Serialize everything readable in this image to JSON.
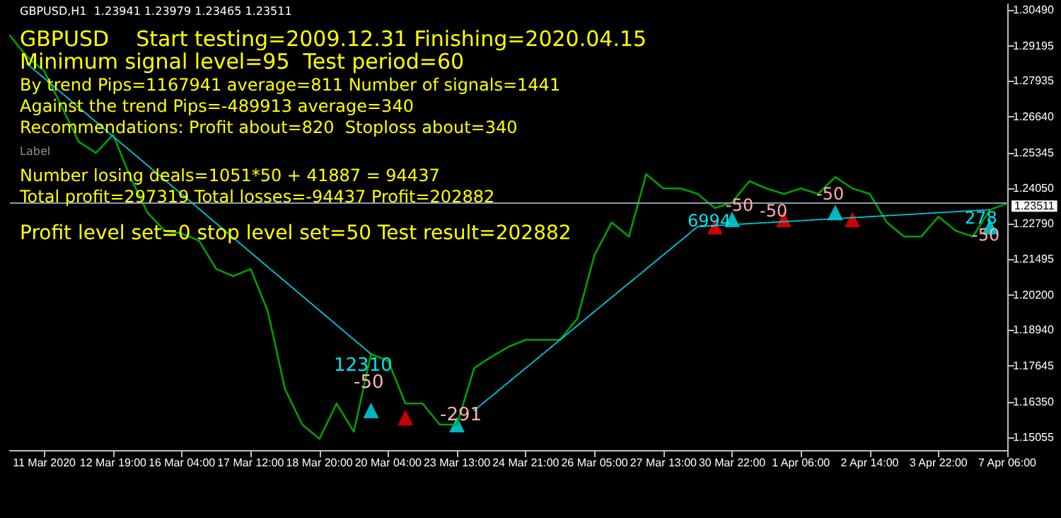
{
  "chart_data": {
    "type": "line",
    "title": "GBPUSD,H1  1.23941 1.23979 1.23465 1.23511",
    "annotations": [
      "GBPUSD    Start testing=2009.12.31 Finishing=2020.04.15",
      "Minimum signal level=95  Test period=60",
      "By trend Pips=1167941 average=811 Number of signals=1441",
      "Against the trend Pips=-489913 average=340",
      "Recommendations: Profit about=820  Stoploss about=340",
      "Label",
      "Number losing deals=1051*50 + 41887 = 94437",
      "Total profit=297319 Total losses=-94437 Profit=202882",
      "Profit level set=0 stop level set=50 Test result=202882",
      "12310",
      "-50",
      "-291",
      "6994",
      "-50",
      "-50",
      "-50",
      "278",
      "-50"
    ],
    "categories": [
      null,
      null,
      "11 Mar 2020",
      null,
      null,
      null,
      "12 Mar 19:00",
      null,
      null,
      null,
      "16 Mar 04:00",
      null,
      null,
      null,
      "17 Mar 12:00",
      null,
      null,
      null,
      "18 Mar 20:00",
      null,
      null,
      null,
      "20 Mar 04:00",
      null,
      null,
      null,
      "23 Mar 13:00",
      null,
      null,
      null,
      "24 Mar 21:00",
      null,
      null,
      null,
      "26 Mar 05:00",
      null,
      null,
      null,
      "27 Mar 13:00",
      null,
      null,
      null,
      "30 Mar 22:00",
      null,
      null,
      null,
      "1 Apr 06:00",
      null,
      null,
      null,
      "2 Apr 14:00",
      null,
      null,
      null,
      "3 Apr 22:00",
      null,
      null,
      null,
      "7 Apr 06:00"
    ],
    "series": [
      {
        "type": "line",
        "color": "#00a000",
        "values": [
          1.2957,
          1.288,
          1.2829,
          1.2702,
          1.2574,
          1.2533,
          1.2599,
          1.2446,
          1.2318,
          1.2252,
          1.2242,
          1.2216,
          1.2114,
          1.2088,
          1.2114,
          1.1961,
          1.168,
          1.1552,
          1.1501,
          1.1628,
          1.1526,
          1.1807,
          1.1782,
          1.1628,
          1.1628,
          1.1552,
          1.1552,
          1.1756,
          1.1797,
          1.1833,
          1.1858,
          1.1858,
          1.1858,
          1.1935,
          1.2165,
          1.2282,
          1.2231,
          1.2456,
          1.2405,
          1.2405,
          1.2385,
          1.2334,
          1.2354,
          1.2431,
          1.2405,
          1.2385,
          1.2405,
          1.2385,
          1.2446,
          1.2405,
          1.2385,
          1.2282,
          1.2231,
          1.2231,
          1.2303,
          1.2252,
          1.2231,
          1.2328,
          1.2351
        ]
      },
      {
        "type": "line",
        "color": "#00c8d8",
        "line_style": "dotted",
        "values": [
          null,
          1.2855,
          null,
          null,
          null,
          null,
          null,
          null,
          null,
          null,
          null,
          null,
          null,
          null,
          null,
          null,
          null,
          null,
          null,
          null,
          null,
          1.1807,
          null,
          null,
          null,
          null,
          null,
          null,
          null,
          null,
          null,
          null,
          null,
          null,
          null,
          null,
          null,
          null,
          null,
          null,
          null,
          null,
          null,
          null,
          null,
          null,
          null,
          null,
          null,
          null,
          null,
          null,
          null,
          null,
          null,
          null,
          null,
          null,
          null
        ]
      },
      {
        "type": "line",
        "color": "#00c8d8",
        "line_style": "dotted",
        "values": [
          null,
          null,
          null,
          null,
          null,
          null,
          null,
          null,
          null,
          null,
          null,
          null,
          null,
          null,
          null,
          null,
          null,
          null,
          null,
          null,
          null,
          null,
          null,
          null,
          null,
          null,
          null,
          1.1603,
          null,
          null,
          null,
          null,
          null,
          null,
          null,
          null,
          null,
          null,
          null,
          null,
          1.2267,
          null,
          null,
          null,
          null,
          null,
          null,
          null,
          null,
          null,
          null,
          null,
          null,
          null,
          null,
          null,
          null,
          1.2328,
          null
        ]
      },
      {
        "type": "scatter",
        "color": "#00e5ee",
        "marker": "triangle",
        "values": [
          null,
          null,
          null,
          null,
          null,
          null,
          null,
          null,
          null,
          null,
          null,
          null,
          null,
          null,
          null,
          null,
          null,
          null,
          null,
          null,
          null,
          1.1603,
          null,
          null,
          null,
          null,
          1.1552,
          null,
          null,
          null,
          null,
          null,
          null,
          null,
          null,
          null,
          null,
          null,
          null,
          null,
          null,
          null,
          1.2293,
          null,
          null,
          null,
          null,
          null,
          1.2318,
          null,
          null,
          null,
          null,
          null,
          null,
          null,
          null,
          1.2267,
          null
        ]
      },
      {
        "type": "scatter",
        "color": "#ff0000",
        "marker": "triangle",
        "values": [
          null,
          null,
          null,
          null,
          null,
          null,
          null,
          null,
          null,
          null,
          null,
          null,
          null,
          null,
          null,
          null,
          null,
          null,
          null,
          null,
          null,
          null,
          null,
          1.1577,
          null,
          null,
          null,
          null,
          null,
          null,
          null,
          null,
          null,
          null,
          null,
          null,
          null,
          null,
          null,
          null,
          null,
          1.2267,
          null,
          null,
          null,
          1.2293,
          null,
          null,
          null,
          1.2293,
          null,
          null,
          null,
          null,
          null,
          null,
          null,
          null,
          null
        ]
      }
    ],
    "ylim": [
      1.146,
      1.307
    ],
    "yticks": [
      {
        "value": 1.3049,
        "label": "1.30490"
      },
      {
        "value": 1.29195,
        "label": "1.29195"
      },
      {
        "value": 1.27935,
        "label": "1.27935"
      },
      {
        "value": 1.2664,
        "label": "1.26640"
      },
      {
        "value": 1.25345,
        "label": "1.25345"
      },
      {
        "value": 1.2405,
        "label": "1.24050"
      },
      {
        "value": 1.2279,
        "label": "1.22790"
      },
      {
        "value": 1.21495,
        "label": "1.21495"
      },
      {
        "value": 1.202,
        "label": "1.20200"
      },
      {
        "value": 1.1894,
        "label": "1.18940"
      },
      {
        "value": 1.17645,
        "label": "1.17645"
      },
      {
        "value": 1.1635,
        "label": "1.16350"
      },
      {
        "value": 1.15055,
        "label": "1.15055"
      }
    ],
    "ref_lines": [
      {
        "axis": "y",
        "value": 1.23511,
        "label": "1.23511",
        "color": "#8a9aa8"
      }
    ],
    "grid": false
  }
}
